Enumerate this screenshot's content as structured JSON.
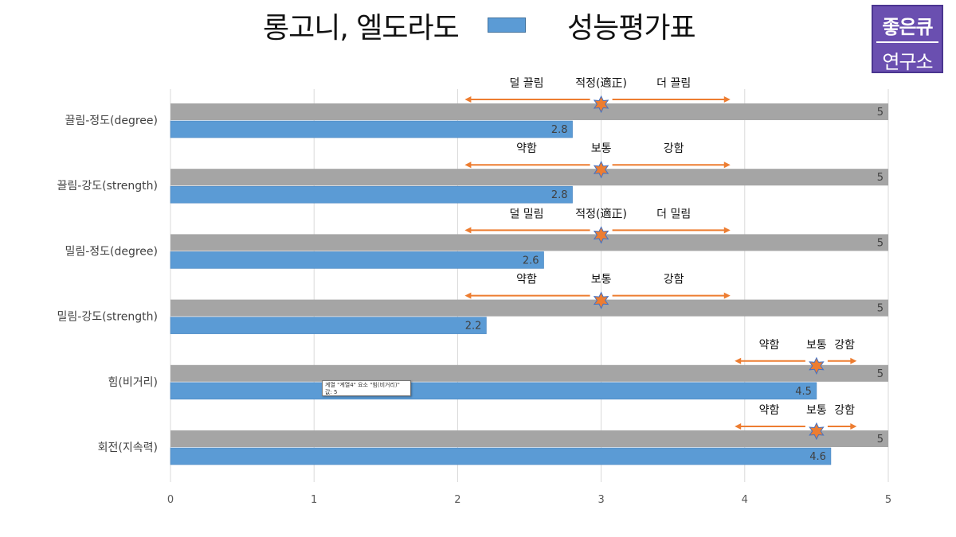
{
  "header": {
    "title": "롱고니, 엘도라도",
    "legend_label": "성능평가표",
    "legend_color": "#5b9bd5"
  },
  "logo": {
    "line1": "좋은큐",
    "line2": "연구소"
  },
  "tooltip": {
    "line1": "계열 \"계열4\" 요소 \"힘(비거리)\"",
    "line2": "값: 5"
  },
  "chart_data": {
    "type": "bar",
    "orientation": "horizontal",
    "categories": [
      "끌림-정도(degree)",
      "끌림-강도(strength)",
      "밀림-정도(degree)",
      "밀림-강도(strength)",
      "힘(비거리)",
      "회전(지속력)"
    ],
    "series": [
      {
        "name": "",
        "color": "#a5a5a5",
        "values": [
          5,
          5,
          5,
          5,
          5,
          5
        ]
      },
      {
        "name": "성능평가표",
        "color": "#5b9bd5",
        "values": [
          2.8,
          2.8,
          2.6,
          2.2,
          4.5,
          4.6
        ]
      }
    ],
    "xlim": [
      0,
      5
    ],
    "xticks": [
      0,
      1,
      2,
      3,
      4,
      5
    ],
    "grid": true,
    "legend_position": "top",
    "marker_color": "#ed7d31",
    "annotations": [
      {
        "left_label": "덜 끌림",
        "center_label": "적정(適正)",
        "right_label": "더 끌림",
        "center_value": 3,
        "left_value": 2.05,
        "right_value": 3.9
      },
      {
        "left_label": "약함",
        "center_label": "보통",
        "right_label": "강함",
        "center_value": 3,
        "left_value": 2.05,
        "right_value": 3.9
      },
      {
        "left_label": "덜 밀림",
        "center_label": "적정(適正)",
        "right_label": "더 밀림",
        "center_value": 3,
        "left_value": 2.05,
        "right_value": 3.9
      },
      {
        "left_label": "약함",
        "center_label": "보통",
        "right_label": "강함",
        "center_value": 3,
        "left_value": 2.05,
        "right_value": 3.9
      },
      {
        "left_label": "약함",
        "center_label": "보통",
        "right_label": "강함",
        "center_value": 4.5,
        "left_value": 3.93,
        "right_value": 4.78
      },
      {
        "left_label": "약함",
        "center_label": "보통",
        "right_label": "강함",
        "center_value": 4.5,
        "left_value": 3.93,
        "right_value": 4.78
      }
    ]
  }
}
